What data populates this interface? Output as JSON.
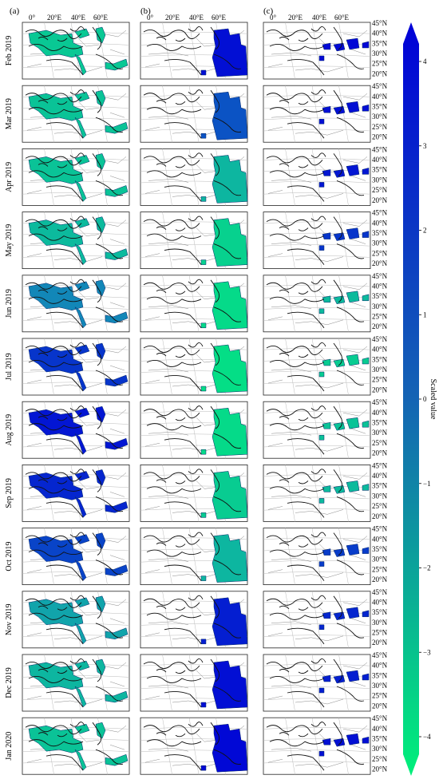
{
  "figure": {
    "column_labels": [
      "(a)",
      "(b)",
      "(c)"
    ],
    "longitude_labels": [
      "0°",
      "20°E",
      "40°E",
      "60°E"
    ],
    "latitude_labels": [
      "45°N",
      "40°N",
      "35°N",
      "30°N",
      "25°N",
      "20°N"
    ],
    "months": [
      "Feb 2019",
      "Mar 2019",
      "Apr 2019",
      "May 2019",
      "Jun 2019",
      "Jul 2019",
      "Aug 2019",
      "Sep 2019",
      "Oct 2019",
      "Nov 2019",
      "Dec 2019",
      "Jan 2020"
    ],
    "colorbar": {
      "label": "Scaled value",
      "ticks": [
        "4",
        "3",
        "2",
        "1",
        "0",
        "−1",
        "−2",
        "−3",
        "−4"
      ],
      "min": -4,
      "max": 4,
      "color_low": "#00f07a",
      "color_high": "#0000d8"
    },
    "scaled_values": {
      "a": [
        -2.2,
        -2.0,
        -2.0,
        -1.6,
        0.4,
        2.6,
        3.4,
        3.0,
        2.2,
        -0.6,
        -1.4,
        -2.0
      ],
      "b": [
        3.6,
        1.8,
        -1.4,
        -2.6,
        -3.0,
        -3.2,
        -3.0,
        -2.4,
        -1.4,
        3.2,
        3.6,
        3.8
      ],
      "c": [
        3.8,
        3.6,
        3.4,
        2.6,
        -1.6,
        -2.4,
        -2.0,
        -1.6,
        2.4,
        3.0,
        3.2,
        3.6
      ]
    }
  }
}
